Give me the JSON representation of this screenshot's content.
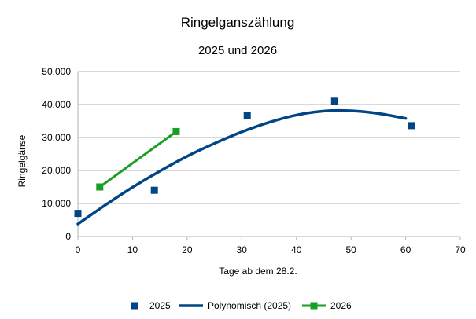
{
  "chart_data": {
    "type": "scatter",
    "title": "Ringelganszählung",
    "subtitle": "2025 und 2026",
    "xlabel": "Tage ab dem 28.2.",
    "ylabel": "Ringelgänse",
    "xlim": [
      0,
      70
    ],
    "ylim": [
      0,
      50000
    ],
    "x_ticks": [
      "0",
      "10",
      "20",
      "30",
      "40",
      "50",
      "60",
      "70"
    ],
    "y_ticks": [
      "0",
      "10.000",
      "20.000",
      "30.000",
      "40.000",
      "50.000"
    ],
    "grid": "horizontal",
    "legend_position": "bottom",
    "series": [
      {
        "name": "2025",
        "kind": "markers",
        "color": "#004586",
        "points": [
          {
            "x": 0,
            "y": 7000
          },
          {
            "x": 14,
            "y": 14000
          },
          {
            "x": 31,
            "y": 36700
          },
          {
            "x": 47,
            "y": 41000
          },
          {
            "x": 61,
            "y": 33600
          }
        ]
      },
      {
        "name": "Polynomisch (2025)",
        "kind": "trendline",
        "color": "#004586",
        "points": [
          {
            "x": 0,
            "y": 3800
          },
          {
            "x": 5,
            "y": 9500
          },
          {
            "x": 10,
            "y": 14900
          },
          {
            "x": 15,
            "y": 19800
          },
          {
            "x": 20,
            "y": 24300
          },
          {
            "x": 25,
            "y": 28200
          },
          {
            "x": 30,
            "y": 31700
          },
          {
            "x": 35,
            "y": 34600
          },
          {
            "x": 40,
            "y": 36800
          },
          {
            "x": 45,
            "y": 38000
          },
          {
            "x": 50,
            "y": 38100
          },
          {
            "x": 55,
            "y": 37300
          },
          {
            "x": 60,
            "y": 35800
          }
        ]
      },
      {
        "name": "2026",
        "kind": "line-markers",
        "color": "#1A9E24",
        "points": [
          {
            "x": 4,
            "y": 15000
          },
          {
            "x": 18,
            "y": 31800
          }
        ]
      }
    ]
  }
}
